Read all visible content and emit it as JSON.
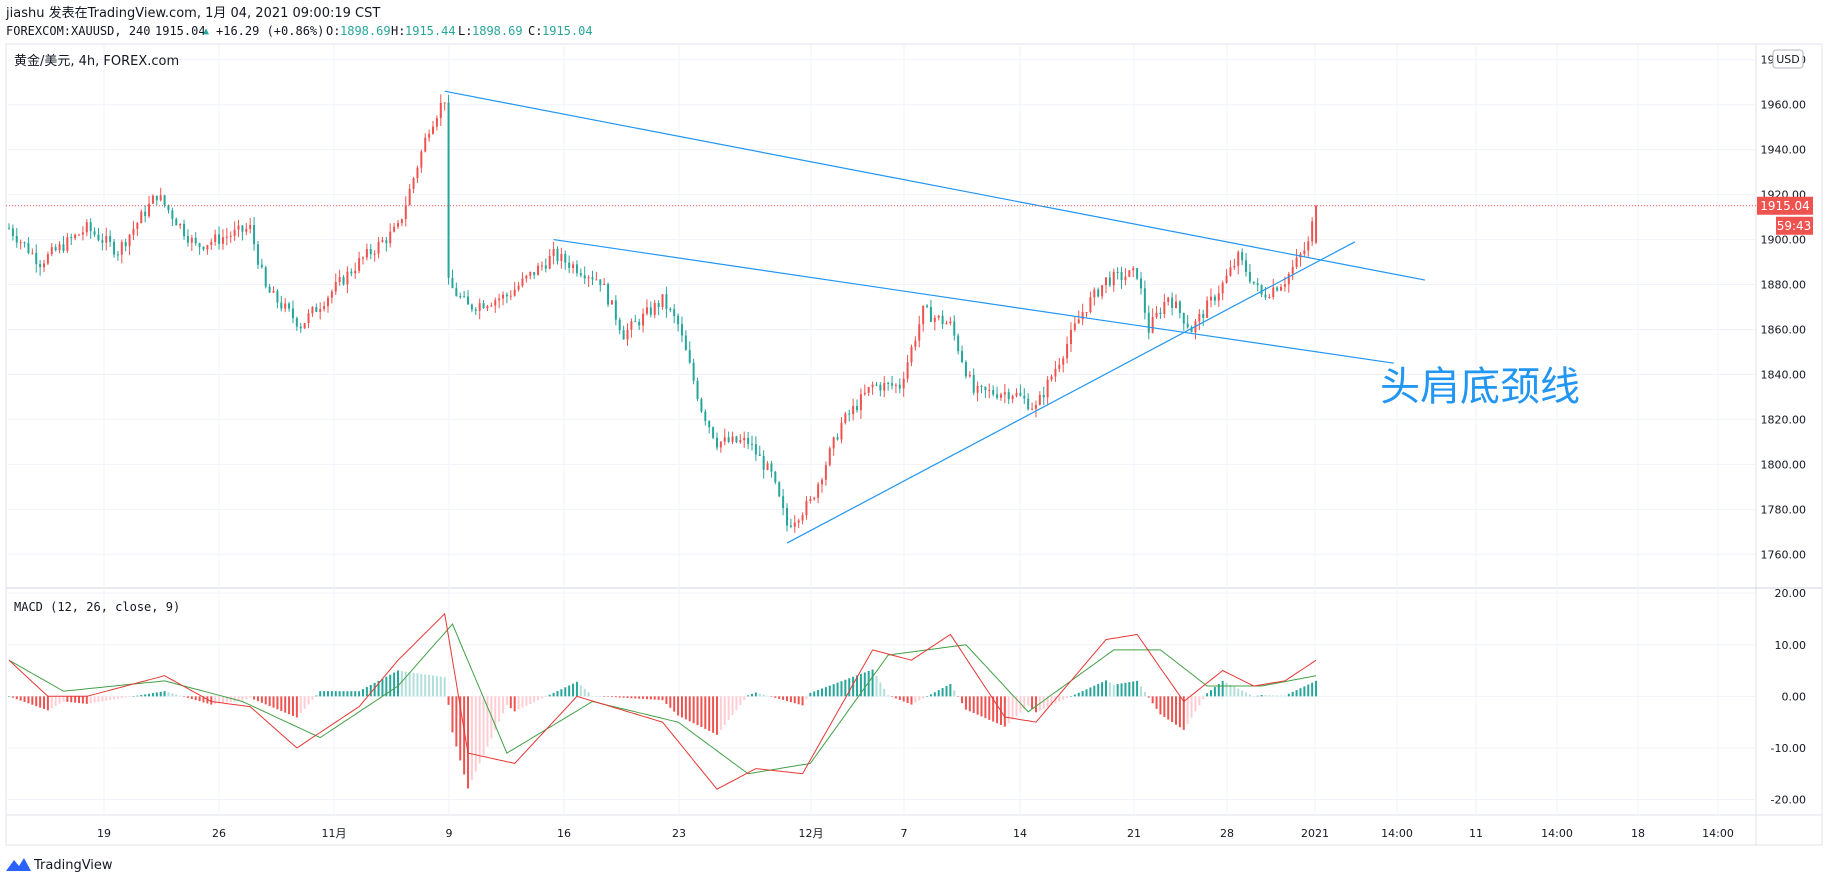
{
  "header": {
    "line1": "jiashu 发表在TradingView.com, 1月 04, 2021 09:00:19 CST",
    "symbol": "FOREXCOM:XAUUSD, 240",
    "last": "1915.04",
    "change": "+16.29 (+0.86%)",
    "o_label": "O:",
    "o_value": "1898.69",
    "h_label": "H:",
    "h_value": "1915.44",
    "l_label": "L:",
    "l_value": "1898.69",
    "c_label": "C:",
    "c_value": "1915.04"
  },
  "pane_title": "黄金/美元, 4h, FOREX.com",
  "currency_label": "USD",
  "price_badge": "1915.04",
  "countdown_badge": "59:43",
  "annotation_text": "头肩底颈线",
  "macd_title": "MACD (12, 26, close, 9)",
  "brand": "TradingView",
  "colors": {
    "up": "#ef5350",
    "down": "#26a69a",
    "trendline": "#2196f3",
    "annotation": "#2196f3",
    "price_line": "#ef5350",
    "macd_line": "#e53935",
    "signal_line": "#43a047"
  },
  "chart_data": [
    {
      "type": "candlestick",
      "title": "黄金/美元, 4h, FOREX.com",
      "y_axis": {
        "ticks": [
          "1760.00",
          "1780.00",
          "1800.00",
          "1820.00",
          "1840.00",
          "1860.00",
          "1880.00",
          "1900.00",
          "1920.00",
          "1940.00",
          "1960.00",
          "1980.00"
        ],
        "range": [
          1745,
          1987
        ]
      },
      "x_axis": {
        "ticks": [
          "19",
          "26",
          "11月",
          "9",
          "16",
          "23",
          "12月",
          "7",
          "14",
          "21",
          "28",
          "2021",
          "14:00",
          "11",
          "14:00",
          "18",
          "14:00"
        ]
      },
      "grid": true,
      "close_path_keypoints": [
        {
          "bar": 0,
          "close": 1905
        },
        {
          "bar": 8,
          "close": 1890
        },
        {
          "bar": 20,
          "close": 1905
        },
        {
          "bar": 28,
          "close": 1895
        },
        {
          "bar": 38,
          "close": 1920
        },
        {
          "bar": 48,
          "close": 1897
        },
        {
          "bar": 62,
          "close": 1905
        },
        {
          "bar": 66,
          "close": 1878
        },
        {
          "bar": 75,
          "close": 1862
        },
        {
          "bar": 90,
          "close": 1890
        },
        {
          "bar": 100,
          "close": 1905
        },
        {
          "bar": 108,
          "close": 1950
        },
        {
          "bar": 112,
          "close": 1963
        },
        {
          "bar": 113,
          "close": 1880
        },
        {
          "bar": 118,
          "close": 1870
        },
        {
          "bar": 128,
          "close": 1875
        },
        {
          "bar": 140,
          "close": 1893
        },
        {
          "bar": 152,
          "close": 1882
        },
        {
          "bar": 158,
          "close": 1858
        },
        {
          "bar": 168,
          "close": 1873
        },
        {
          "bar": 172,
          "close": 1862
        },
        {
          "bar": 178,
          "close": 1825
        },
        {
          "bar": 182,
          "close": 1810
        },
        {
          "bar": 190,
          "close": 1810
        },
        {
          "bar": 196,
          "close": 1795
        },
        {
          "bar": 200,
          "close": 1773
        },
        {
          "bar": 206,
          "close": 1783
        },
        {
          "bar": 214,
          "close": 1818
        },
        {
          "bar": 222,
          "close": 1835
        },
        {
          "bar": 229,
          "close": 1835
        },
        {
          "bar": 235,
          "close": 1868
        },
        {
          "bar": 242,
          "close": 1862
        },
        {
          "bar": 248,
          "close": 1832
        },
        {
          "bar": 258,
          "close": 1832
        },
        {
          "bar": 264,
          "close": 1825
        },
        {
          "bar": 276,
          "close": 1868
        },
        {
          "bar": 282,
          "close": 1882
        },
        {
          "bar": 290,
          "close": 1885
        },
        {
          "bar": 293,
          "close": 1860
        },
        {
          "bar": 298,
          "close": 1875
        },
        {
          "bar": 304,
          "close": 1860
        },
        {
          "bar": 312,
          "close": 1880
        },
        {
          "bar": 316,
          "close": 1892
        },
        {
          "bar": 322,
          "close": 1875
        },
        {
          "bar": 328,
          "close": 1882
        },
        {
          "bar": 334,
          "close": 1898
        },
        {
          "bar": 336,
          "close": 1915
        }
      ],
      "last_price": 1915.04,
      "trendlines": [
        {
          "name": "upper-resistance",
          "from": {
            "bar": 112,
            "price": 1966
          },
          "to": {
            "bar": 364,
            "price": 1882
          }
        },
        {
          "name": "neckline",
          "from": {
            "bar": 140,
            "price": 1900
          },
          "to": {
            "bar": 356,
            "price": 1845
          }
        },
        {
          "name": "rising-support",
          "from": {
            "bar": 200,
            "price": 1765
          },
          "to": {
            "bar": 346,
            "price": 1899
          }
        }
      ]
    },
    {
      "type": "macd",
      "title": "MACD (12, 26, close, 9)",
      "y_axis": {
        "ticks": [
          "20.00",
          "10.00",
          "0.00",
          "-10.00",
          "-20.00"
        ],
        "range": [
          -23,
          21
        ]
      },
      "macd_keypoints": [
        {
          "bar": 0,
          "value": 7
        },
        {
          "bar": 10,
          "value": 0
        },
        {
          "bar": 20,
          "value": 0
        },
        {
          "bar": 40,
          "value": 4
        },
        {
          "bar": 52,
          "value": -1
        },
        {
          "bar": 62,
          "value": -2
        },
        {
          "bar": 74,
          "value": -10
        },
        {
          "bar": 90,
          "value": -2
        },
        {
          "bar": 100,
          "value": 7
        },
        {
          "bar": 112,
          "value": 16
        },
        {
          "bar": 118,
          "value": -11
        },
        {
          "bar": 130,
          "value": -13
        },
        {
          "bar": 146,
          "value": 0
        },
        {
          "bar": 168,
          "value": -5
        },
        {
          "bar": 182,
          "value": -18
        },
        {
          "bar": 192,
          "value": -14
        },
        {
          "bar": 204,
          "value": -15
        },
        {
          "bar": 222,
          "value": 9
        },
        {
          "bar": 232,
          "value": 7
        },
        {
          "bar": 242,
          "value": 12
        },
        {
          "bar": 256,
          "value": -4
        },
        {
          "bar": 264,
          "value": -5
        },
        {
          "bar": 282,
          "value": 11
        },
        {
          "bar": 290,
          "value": 12
        },
        {
          "bar": 302,
          "value": -1
        },
        {
          "bar": 312,
          "value": 5
        },
        {
          "bar": 320,
          "value": 2
        },
        {
          "bar": 328,
          "value": 3
        },
        {
          "bar": 336,
          "value": 7
        }
      ],
      "signal_keypoints": [
        {
          "bar": 0,
          "value": 7
        },
        {
          "bar": 14,
          "value": 1
        },
        {
          "bar": 40,
          "value": 3
        },
        {
          "bar": 60,
          "value": -1
        },
        {
          "bar": 80,
          "value": -8
        },
        {
          "bar": 100,
          "value": 2
        },
        {
          "bar": 114,
          "value": 14
        },
        {
          "bar": 128,
          "value": -11
        },
        {
          "bar": 150,
          "value": -1
        },
        {
          "bar": 172,
          "value": -5
        },
        {
          "bar": 190,
          "value": -15
        },
        {
          "bar": 206,
          "value": -13
        },
        {
          "bar": 226,
          "value": 8
        },
        {
          "bar": 246,
          "value": 10
        },
        {
          "bar": 262,
          "value": -3
        },
        {
          "bar": 284,
          "value": 9
        },
        {
          "bar": 296,
          "value": 9
        },
        {
          "bar": 308,
          "value": 2
        },
        {
          "bar": 322,
          "value": 2
        },
        {
          "bar": 336,
          "value": 4
        }
      ]
    }
  ]
}
